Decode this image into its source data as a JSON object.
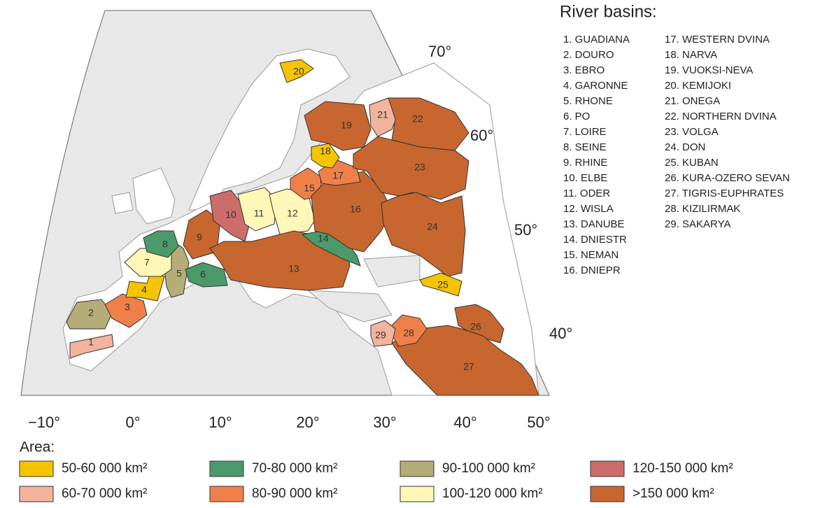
{
  "list_title": "River basins:",
  "list": [
    "1. GUADIANA",
    "2. DOURO",
    "3. EBRO",
    "4. GARONNE",
    "5. RHONE",
    "6. PO",
    "7. LOIRE",
    "8. SEINE",
    "9. RHINE",
    "10. ELBE",
    "11. ODER",
    "12. WISLA",
    "13. DANUBE",
    "14. DNIESTR",
    "15. NEMAN",
    "16. DNIEPR",
    "17. WESTERN DVINA",
    "18. NARVA",
    "19. VUOKSI-NEVA",
    "20. KEMIJOKI",
    "21. ONEGA",
    "22. NORTHERN DVINA",
    "23. VOLGA",
    "24. DON",
    "25. KUBAN",
    "26. KURA-OZERO SEVAN",
    "27. TIGRIS-EUPHRATES",
    "28. KIZILIRMAK",
    "29. SAKARYA"
  ],
  "basins": [
    {
      "label": "1",
      "color": "#f2b49f"
    },
    {
      "label": "2",
      "color": "#b4ad78"
    },
    {
      "label": "3",
      "color": "#ef8049"
    },
    {
      "label": "4",
      "color": "#f5c400"
    },
    {
      "label": "5",
      "color": "#b4ad78"
    },
    {
      "label": "6",
      "color": "#4c9a6a"
    },
    {
      "label": "7",
      "color": "#fff7b8"
    },
    {
      "label": "8",
      "color": "#4c9a6a"
    },
    {
      "label": "9",
      "color": "#c7662f"
    },
    {
      "label": "10",
      "color": "#cc6d6c"
    },
    {
      "label": "11",
      "color": "#fff7b8"
    },
    {
      "label": "12",
      "color": "#fff7b8"
    },
    {
      "label": "13",
      "color": "#c7662f"
    },
    {
      "label": "14",
      "color": "#4c9a6a"
    },
    {
      "label": "15",
      "color": "#ef8049"
    },
    {
      "label": "16",
      "color": "#c7662f"
    },
    {
      "label": "17",
      "color": "#ef8049"
    },
    {
      "label": "18",
      "color": "#f5c400"
    },
    {
      "label": "19",
      "color": "#c7662f"
    },
    {
      "label": "20",
      "color": "#f5c400"
    },
    {
      "label": "21",
      "color": "#f2b49f"
    },
    {
      "label": "22",
      "color": "#c7662f"
    },
    {
      "label": "23",
      "color": "#c7662f"
    },
    {
      "label": "24",
      "color": "#c7662f"
    },
    {
      "label": "25",
      "color": "#f5c400"
    },
    {
      "label": "26",
      "color": "#c7662f"
    },
    {
      "label": "27",
      "color": "#c7662f"
    },
    {
      "label": "28",
      "color": "#ef8049"
    },
    {
      "label": "29",
      "color": "#f2b49f"
    }
  ],
  "latitude_labels": [
    "70°",
    "60°",
    "50°",
    "40°"
  ],
  "longitude_labels": [
    "−10°",
    "0°",
    "10°",
    "20°",
    "30°",
    "40°",
    "50°"
  ],
  "legend": {
    "title": "Area:",
    "items": [
      {
        "label": "50-60 000 km²",
        "color": "#f5c400"
      },
      {
        "label": "60-70 000 km²",
        "color": "#f2b49f"
      },
      {
        "label": "70-80 000 km²",
        "color": "#4c9a6a"
      },
      {
        "label": "80-90 000 km²",
        "color": "#ef8049"
      },
      {
        "label": "90-100 000 km²",
        "color": "#b4ad78"
      },
      {
        "label": "100-120 000 km²",
        "color": "#fff7b8"
      },
      {
        "label": "120-150 000 km²",
        "color": "#cc6d6c"
      },
      {
        "label": ">150 000 km²",
        "color": "#c7662f"
      }
    ]
  }
}
